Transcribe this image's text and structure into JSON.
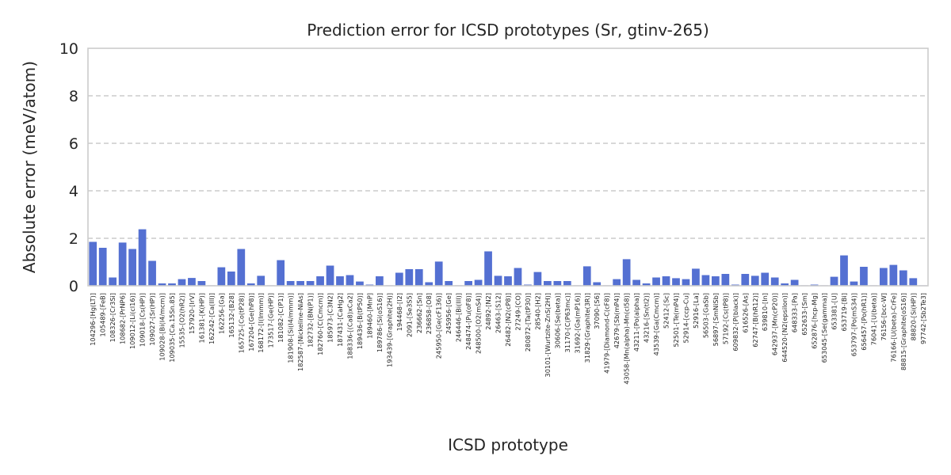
{
  "chart_data": {
    "type": "bar",
    "title": "Prediction error for ICSD prototypes (Sr, gtinv-265)",
    "xlabel": "ICSD prototype",
    "ylabel": "Absolute error (meV/atom)",
    "ylim": [
      0,
      10
    ],
    "yticks": [
      0,
      2,
      4,
      6,
      8,
      10
    ],
    "grid": "y-dashed",
    "bar_color": "#5470d2",
    "categories": [
      "104296-[Hg(LT)]",
      "105489-[FeB]",
      "108326-[Cr3Si]",
      "108682-[PrNP6]",
      "109012-[Li(cl16)]",
      "109018-[Cs(HP)]",
      "109027-[Sr(HP)]",
      "109028-[Bi(I4/mcm)]",
      "109035-[Ca.15Sn.85]",
      "15535-[O2(hR2)]",
      "157920-[IrV]",
      "161381-[K(HP)]",
      "162242-[Ca(III)]",
      "162256-[Ga]",
      "165132-[B28]",
      "165725-[Co(tP28)]",
      "167204-[Ge(hP8)]",
      "168172-[I(Immm)]",
      "173517-[Ge(HP)]",
      "181082-[C(P1)]",
      "181908-[Si(I4/mmm)]",
      "182587-[Nickeline-NiAs]",
      "182732-[BN(P1)]",
      "182760-[C(Cmcm)]",
      "185973-[C3N2]",
      "187431-[CaHg2]",
      "188336-[(Ca8)xCa2]",
      "189436-[B(tP50)]",
      "189460-[MnP]",
      "189786-[Si(oS16)]",
      "193439-[Graphite(2H)]",
      "194468-[I2]",
      "2091-[Se3S5]",
      "236662-[Sn]",
      "236858-[O8]",
      "245950-[Ge(cF136)]",
      "245956-[Ge]",
      "246446-[Bi(III)]",
      "248474-[Pu(oF8)]",
      "248500-[O2(mS4)]",
      "24892-[N2]",
      "26463-[S12]",
      "26482-[N2(cP8)]",
      "27249-[CO]",
      "280872-[Ta(tP30)]",
      "28540-[H2]",
      "30101-[Wurtzite-ZnS(2H)]",
      "30606-[Se(beta)]",
      "31170-[C(P63mc)]",
      "31692-[Ga(mP16)]",
      "31829-[Graphite(3R)]",
      "37090-[S6]",
      "41979-[Diamond-C(cF8)]",
      "42679-[Sb(mP4)]",
      "43058-[Mn(alpha)-Mn(cI58)]",
      "43211-[Po(alpha)]",
      "43216-[Sn(tI2)]",
      "43539-[Ga(Cmcm)]",
      "52412-[Sc]",
      "52501-[Te(mP4)]",
      "52914-[ccp-Cu]",
      "52916-[La]",
      "56503-[GaSb]",
      "56897-[SmNiSb]",
      "57192-[Cs(tP8)]",
      "609832-[P(black)]",
      "616526-[As]",
      "62747-[B(hR12)]",
      "639810-[In]",
      "642937-[Mn(cP20)]",
      "644520-[N2(epsilon)]",
      "648333-[Pa]",
      "652633-[Sm]",
      "652876-[hcp-Mg]",
      "653045-[Se(gamma)]",
      "653381-[U]",
      "653719-[Bi]",
      "653797-[Po(mS34)]",
      "656457-[Po(hR1)]",
      "76041-[U(beta)]",
      "76156-[bcc-W]",
      "76166-[U(beta)-CrFe]",
      "88815-[Graphite(oS16)]",
      "88820-[Si(HP)]",
      "97742-[Sb2Te3]"
    ],
    "values": [
      1.85,
      1.6,
      0.35,
      1.82,
      1.55,
      2.38,
      1.05,
      0.1,
      0.1,
      0.28,
      0.33,
      0.2,
      0.02,
      0.78,
      0.6,
      1.55,
      0.1,
      0.42,
      0.02,
      1.08,
      0.2,
      0.2,
      0.2,
      0.4,
      0.85,
      0.4,
      0.45,
      0.18,
      0.05,
      0.4,
      0.02,
      0.55,
      0.7,
      0.7,
      0.15,
      1.02,
      0.2,
      0.02,
      0.2,
      0.25,
      1.45,
      0.42,
      0.4,
      0.75,
      0.05,
      0.58,
      0.2,
      0.2,
      0.2,
      0.02,
      0.82,
      0.15,
      0.02,
      0.28,
      1.12,
      0.25,
      0.1,
      0.35,
      0.4,
      0.32,
      0.28,
      0.72,
      0.45,
      0.4,
      0.5,
      0.05,
      0.5,
      0.42,
      0.55,
      0.35,
      0.1,
      0.25,
      0.02,
      0.05,
      0.02,
      0.38,
      1.28,
      0.18,
      0.8,
      0.02,
      0.75,
      0.88,
      0.65,
      0.32,
      0.02
    ]
  }
}
